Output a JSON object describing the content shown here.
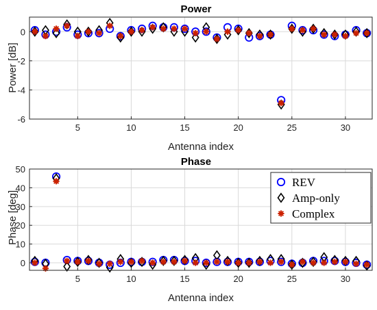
{
  "chart_data": [
    {
      "type": "scatter",
      "title": "Power",
      "xlabel": "Antenna index",
      "ylabel": "Power [dB]",
      "xlim": [
        0.5,
        32.5
      ],
      "ylim": [
        -6,
        1
      ],
      "xticks": [
        5,
        10,
        15,
        20,
        25,
        30
      ],
      "yticks": [
        -6,
        -4,
        -2,
        0
      ],
      "grid": true,
      "x": [
        1,
        2,
        3,
        4,
        5,
        6,
        7,
        8,
        9,
        10,
        11,
        12,
        13,
        14,
        15,
        16,
        17,
        18,
        19,
        20,
        21,
        22,
        23,
        24,
        25,
        26,
        27,
        28,
        29,
        30,
        31,
        32
      ],
      "series": [
        {
          "name": "REV",
          "marker": "circle",
          "color": "#0000ff",
          "values": [
            0.1,
            -0.2,
            0.0,
            0.3,
            -0.2,
            -0.1,
            -0.1,
            0.2,
            -0.3,
            0.1,
            0.2,
            0.4,
            0.3,
            0.3,
            0.2,
            0.0,
            0.0,
            -0.4,
            0.3,
            0.2,
            -0.4,
            -0.3,
            -0.2,
            -4.7,
            0.4,
            0.1,
            0.1,
            -0.2,
            -0.3,
            -0.2,
            0.1,
            -0.1
          ]
        },
        {
          "name": "Amp-only",
          "marker": "diamond",
          "color": "#000000",
          "values": [
            0.0,
            0.1,
            -0.1,
            0.5,
            0.0,
            0.0,
            0.1,
            0.6,
            -0.4,
            0.0,
            0.0,
            0.2,
            0.3,
            0.0,
            0.0,
            -0.4,
            0.3,
            -0.5,
            -0.2,
            0.1,
            -0.1,
            -0.2,
            -0.2,
            -5.0,
            0.2,
            0.0,
            0.2,
            -0.1,
            -0.2,
            -0.2,
            0.0,
            -0.1
          ]
        },
        {
          "name": "Complex",
          "marker": "star",
          "color": "#cc2200",
          "values": [
            0.0,
            -0.3,
            0.2,
            0.4,
            -0.3,
            0.0,
            -0.1,
            0.4,
            -0.3,
            0.0,
            0.1,
            0.3,
            0.2,
            0.2,
            0.2,
            -0.1,
            0.0,
            -0.5,
            0.0,
            0.1,
            -0.1,
            -0.3,
            -0.2,
            -4.9,
            0.2,
            0.1,
            0.2,
            -0.2,
            -0.2,
            -0.3,
            -0.1,
            -0.1
          ]
        }
      ]
    },
    {
      "type": "scatter",
      "title": "Phase",
      "xlabel": "Antenna index",
      "ylabel": "Phase [deg]",
      "xlim": [
        0.5,
        32.5
      ],
      "ylim": [
        -4,
        50
      ],
      "xticks": [
        5,
        10,
        15,
        20,
        25,
        30
      ],
      "yticks": [
        0,
        10,
        20,
        30,
        40,
        50
      ],
      "grid": true,
      "legend": "upper right",
      "x": [
        1,
        2,
        3,
        4,
        5,
        6,
        7,
        8,
        9,
        10,
        11,
        12,
        13,
        14,
        15,
        16,
        17,
        18,
        19,
        20,
        21,
        22,
        23,
        24,
        25,
        26,
        27,
        28,
        29,
        30,
        31,
        32
      ],
      "series": [
        {
          "name": "REV",
          "marker": "circle",
          "color": "#0000ff",
          "values": [
            0.5,
            0.0,
            46.0,
            1.5,
            1.0,
            1.0,
            0.0,
            -1.0,
            0.0,
            0.5,
            0.5,
            0.5,
            1.5,
            1.5,
            1.0,
            1.0,
            0.0,
            0.5,
            0.5,
            0.5,
            0.5,
            0.5,
            1.0,
            0.5,
            -0.5,
            0.0,
            1.0,
            1.0,
            1.0,
            0.5,
            0.0,
            -1.0
          ]
        },
        {
          "name": "Amp-only",
          "marker": "diamond",
          "color": "#000000",
          "values": [
            1.0,
            -0.5,
            45.0,
            -2.0,
            0.5,
            1.5,
            0.0,
            -2.5,
            2.0,
            0.0,
            0.5,
            -1.0,
            1.0,
            1.0,
            1.5,
            2.5,
            -1.0,
            4.0,
            1.0,
            0.0,
            0.0,
            1.0,
            2.0,
            2.0,
            -1.0,
            0.0,
            0.5,
            3.0,
            1.5,
            1.0,
            1.0,
            -1.5
          ]
        },
        {
          "name": "Complex",
          "marker": "star",
          "color": "#cc2200",
          "values": [
            0.0,
            -3.0,
            43.5,
            1.0,
            0.5,
            1.0,
            -0.5,
            -0.5,
            0.5,
            0.5,
            1.0,
            0.0,
            0.5,
            0.5,
            1.0,
            0.0,
            0.0,
            0.5,
            0.5,
            0.0,
            0.0,
            0.5,
            0.0,
            0.5,
            -1.0,
            0.5,
            0.0,
            0.0,
            0.5,
            0.5,
            -0.5,
            -1.0
          ]
        }
      ]
    }
  ]
}
